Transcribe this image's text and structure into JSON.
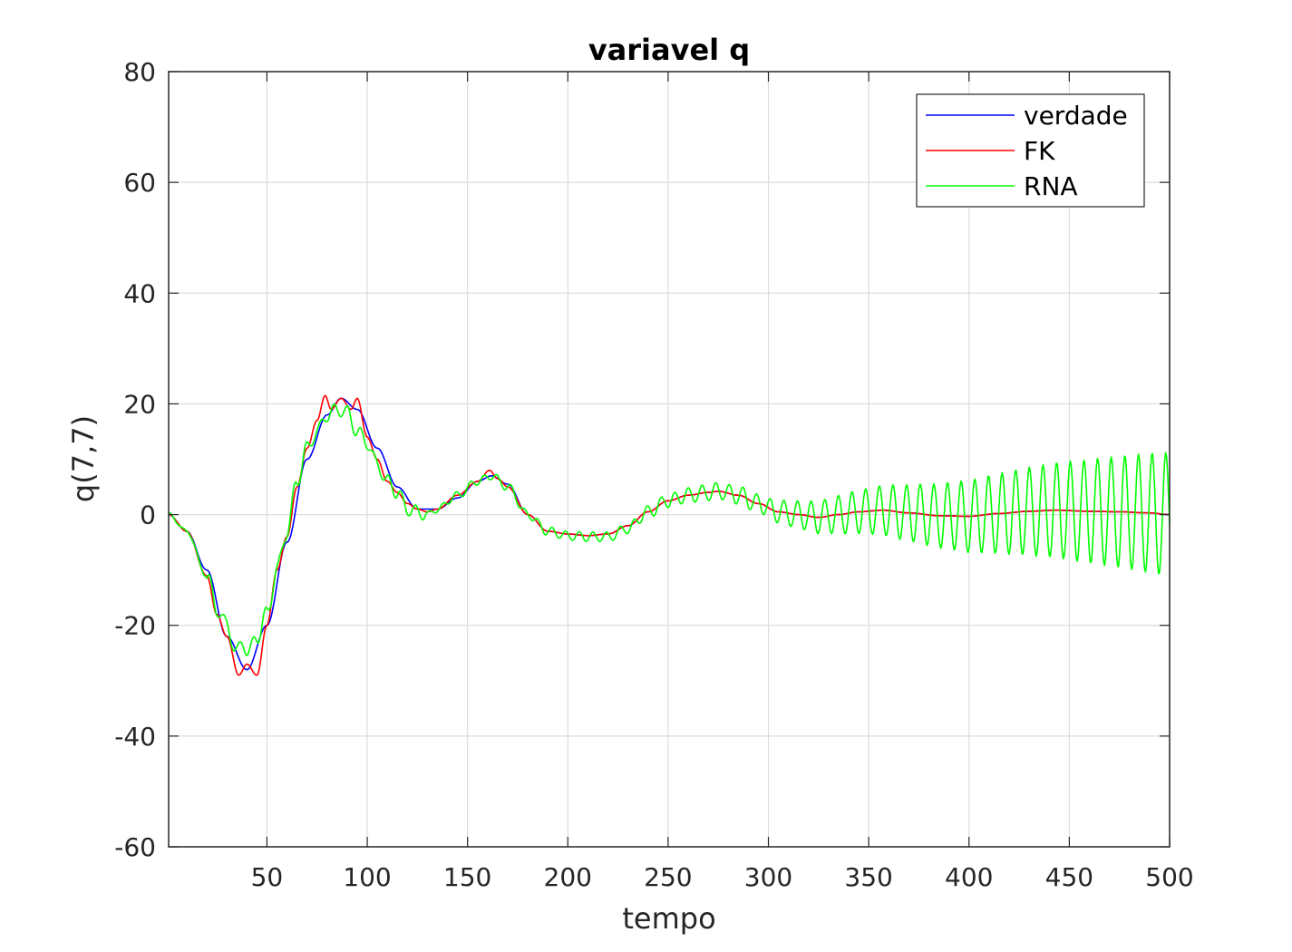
{
  "chart_data": {
    "type": "line",
    "title": "variavel q",
    "xlabel": "tempo",
    "ylabel": "q(7,7)",
    "xlim": [
      1,
      500
    ],
    "ylim": [
      -60,
      80
    ],
    "xticks": [
      50,
      100,
      150,
      200,
      250,
      300,
      350,
      400,
      450,
      500
    ],
    "yticks": [
      -60,
      -40,
      -20,
      0,
      20,
      40,
      60,
      80
    ],
    "xtick_labels": [
      "50",
      "100",
      "150",
      "200",
      "250",
      "300",
      "350",
      "400",
      "450",
      "500"
    ],
    "ytick_labels": [
      "-60",
      "-40",
      "-20",
      "0",
      "20",
      "40",
      "60",
      "80"
    ],
    "grid": true,
    "legend_position": "top-right",
    "series": [
      {
        "name": "verdade",
        "color": "#0000ff",
        "x": [
          1,
          10,
          20,
          30,
          40,
          50,
          60,
          70,
          80,
          87,
          95,
          105,
          115,
          125,
          135,
          145,
          155,
          162,
          170,
          180,
          190,
          200,
          210,
          220,
          230,
          240,
          250,
          260,
          270,
          275,
          285,
          295,
          305,
          315,
          325,
          335,
          345,
          357,
          370,
          385,
          400,
          415,
          430,
          443,
          460,
          475,
          490,
          500
        ],
        "values": [
          0,
          -3,
          -10,
          -22,
          -28,
          -20,
          -5,
          10,
          18,
          21,
          19,
          12,
          5,
          1,
          1,
          3,
          6,
          7,
          5.5,
          0,
          -3,
          -3.5,
          -3.8,
          -3.5,
          -2,
          0.5,
          2.5,
          3.5,
          4,
          4.2,
          3.5,
          2,
          0.5,
          0,
          -0.5,
          0,
          0.5,
          0.8,
          0.3,
          -0.2,
          -0.3,
          0.2,
          0.6,
          0.8,
          0.6,
          0.5,
          0.3,
          0
        ]
      },
      {
        "name": "FK",
        "color": "#ff0000",
        "x": [
          1,
          10,
          20,
          25,
          30,
          36,
          40,
          45,
          50,
          55,
          60,
          65,
          70,
          75,
          79,
          82,
          87,
          92,
          95,
          100,
          105,
          110,
          115,
          120,
          125,
          130,
          135,
          145,
          155,
          161,
          165,
          170,
          180,
          190,
          200,
          210,
          220,
          230,
          240,
          250,
          260,
          270,
          275,
          285,
          295,
          305,
          315,
          325,
          335,
          345,
          357,
          370,
          385,
          400,
          415,
          430,
          443,
          460,
          475,
          490,
          500
        ],
        "values": [
          0,
          -3,
          -11,
          -18,
          -22,
          -29,
          -27,
          -29,
          -20,
          -10,
          -4,
          5,
          12,
          17,
          21.5,
          19,
          21,
          19,
          21,
          14,
          10,
          6,
          4,
          2,
          1,
          0.5,
          1,
          3.5,
          6,
          8,
          6.5,
          5,
          0,
          -3,
          -3.5,
          -3.8,
          -3.5,
          -2,
          0.5,
          2.5,
          3.5,
          4,
          4.2,
          3.5,
          2,
          0.5,
          0,
          -0.5,
          0,
          0.5,
          0.8,
          0.3,
          -0.2,
          -0.3,
          0.2,
          0.6,
          0.8,
          0.6,
          0.5,
          0.3,
          0
        ]
      },
      {
        "name": "RNA",
        "color": "#00ff00",
        "x": [
          1,
          10,
          20,
          25,
          30,
          35,
          38,
          41,
          45,
          50,
          55,
          60,
          65,
          70,
          75,
          80,
          85,
          90,
          95,
          100,
          105,
          110,
          115,
          120,
          125,
          130,
          135,
          145,
          155,
          162,
          170,
          180,
          190,
          200,
          210,
          220,
          230,
          240,
          250,
          260,
          270,
          275,
          285,
          295,
          305,
          315,
          325,
          335,
          345,
          357,
          370,
          385,
          400,
          415,
          430,
          443,
          460,
          475,
          490,
          500
        ],
        "values": [
          0,
          -3,
          -11,
          -17,
          -20,
          -25,
          -23,
          -25,
          -22,
          -18,
          -10,
          -3,
          6,
          12,
          15,
          18,
          19,
          18.5,
          15,
          13,
          9,
          6,
          4,
          1,
          0.5,
          0,
          1,
          3.5,
          6,
          7,
          5,
          0,
          -3,
          -3.8,
          -4,
          -4,
          -2.5,
          0.5,
          2.5,
          3.5,
          4,
          4.3,
          3.5,
          2,
          0.5,
          0,
          -0.5,
          0,
          0.5,
          0.8,
          0.3,
          -0.2,
          -0.3,
          0.2,
          0.6,
          0.8,
          0.6,
          0.5,
          0.3,
          0
        ]
      }
    ]
  }
}
